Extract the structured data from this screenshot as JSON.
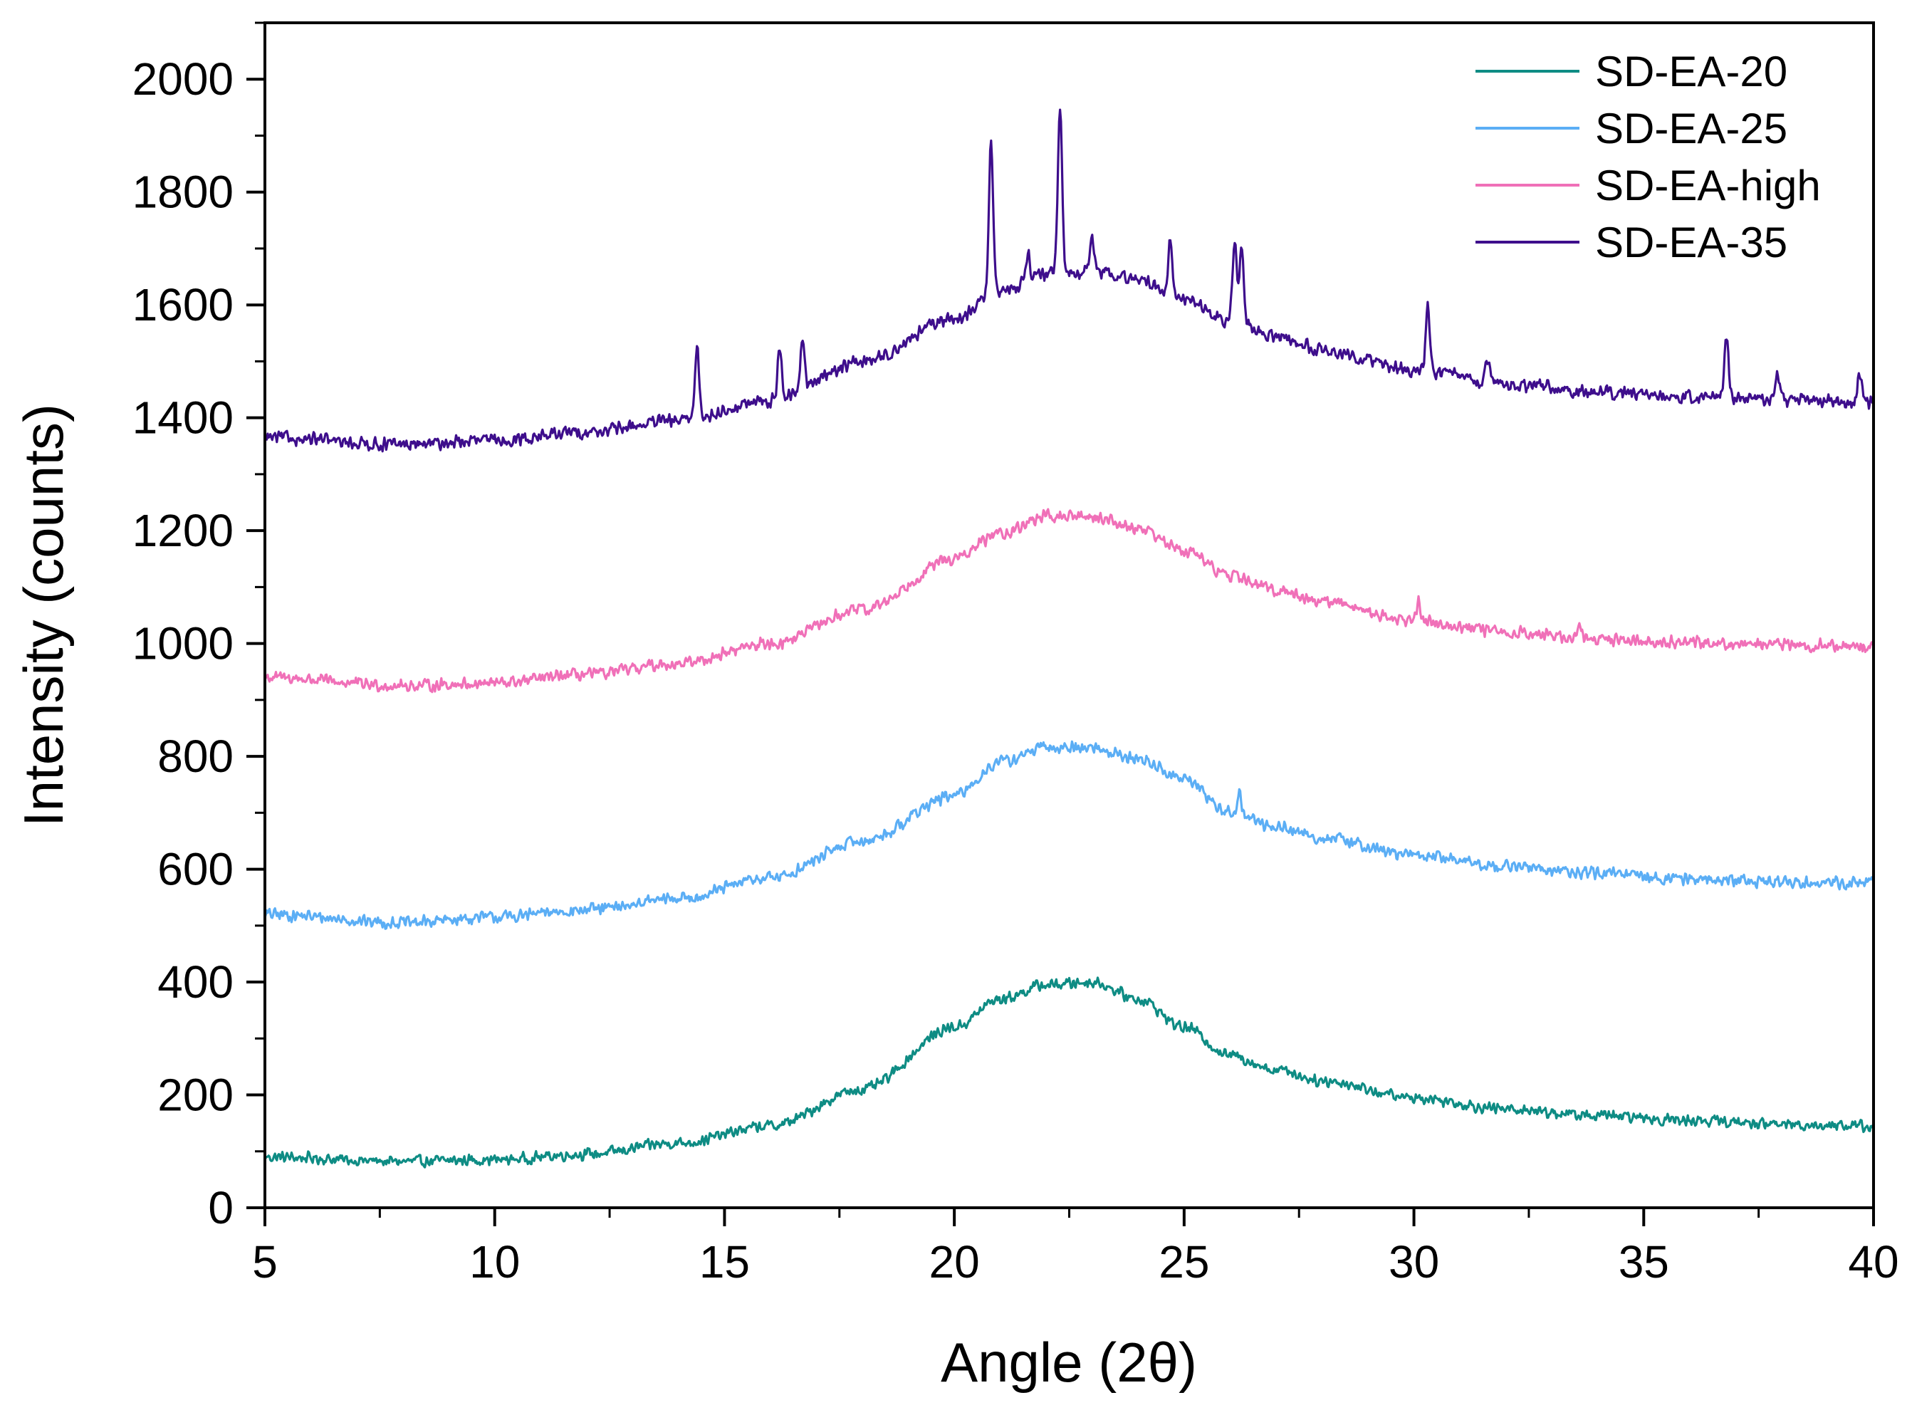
{
  "chart_data": {
    "type": "line",
    "title": "",
    "xlabel": "Angle (2θ)",
    "ylabel": "Intensity (counts)",
    "xlim": [
      5,
      40
    ],
    "ylim": [
      0,
      2100
    ],
    "xticks": [
      5,
      10,
      15,
      20,
      25,
      30,
      35,
      40
    ],
    "yticks": [
      0,
      200,
      400,
      600,
      800,
      1000,
      1200,
      1400,
      1600,
      1800,
      2000
    ],
    "xtick_labels": [
      "5",
      "10",
      "15",
      "20",
      "25",
      "30",
      "35",
      "40"
    ],
    "ytick_labels": [
      "0",
      "200",
      "400",
      "600",
      "800",
      "1000",
      "1200",
      "1400",
      "1600",
      "1800",
      "2000"
    ],
    "grid": false,
    "legend_position": "top-right",
    "series": [
      {
        "name": "SD-EA-20",
        "color": "#0E8C84",
        "baseline": [
          [
            5,
            90
          ],
          [
            8,
            82
          ],
          [
            10,
            85
          ],
          [
            12,
            95
          ],
          [
            14,
            115
          ],
          [
            16,
            145
          ],
          [
            18,
            210
          ],
          [
            20,
            320
          ],
          [
            21,
            370
          ],
          [
            22,
            395
          ],
          [
            23,
            400
          ],
          [
            24,
            370
          ],
          [
            25,
            320
          ],
          [
            26,
            270
          ],
          [
            27,
            245
          ],
          [
            28,
            225
          ],
          [
            30,
            195
          ],
          [
            32,
            175
          ],
          [
            34,
            163
          ],
          [
            36,
            155
          ],
          [
            38,
            148
          ],
          [
            40,
            145
          ]
        ],
        "noise": 12,
        "peaks": []
      },
      {
        "name": "SD-EA-25",
        "color": "#5BAEF5",
        "baseline": [
          [
            5,
            520
          ],
          [
            8,
            505
          ],
          [
            10,
            515
          ],
          [
            12,
            528
          ],
          [
            14,
            548
          ],
          [
            16,
            585
          ],
          [
            18,
            650
          ],
          [
            20,
            730
          ],
          [
            21,
            790
          ],
          [
            22,
            815
          ],
          [
            23,
            815
          ],
          [
            24,
            795
          ],
          [
            25,
            760
          ],
          [
            26,
            700
          ],
          [
            27,
            675
          ],
          [
            28,
            655
          ],
          [
            30,
            625
          ],
          [
            32,
            605
          ],
          [
            34,
            592
          ],
          [
            36,
            583
          ],
          [
            38,
            578
          ],
          [
            40,
            575
          ]
        ],
        "noise": 13,
        "peaks": [
          [
            26.2,
            40
          ]
        ]
      },
      {
        "name": "SD-EA-high",
        "color": "#F070B8",
        "baseline": [
          [
            5,
            940
          ],
          [
            8,
            925
          ],
          [
            10,
            930
          ],
          [
            12,
            945
          ],
          [
            14,
            965
          ],
          [
            16,
            1000
          ],
          [
            18,
            1060
          ],
          [
            20,
            1150
          ],
          [
            21,
            1195
          ],
          [
            22,
            1225
          ],
          [
            23,
            1225
          ],
          [
            24,
            1205
          ],
          [
            25,
            1165
          ],
          [
            26,
            1120
          ],
          [
            27,
            1095
          ],
          [
            28,
            1075
          ],
          [
            30,
            1040
          ],
          [
            32,
            1020
          ],
          [
            34,
            1008
          ],
          [
            36,
            1002
          ],
          [
            38,
            998
          ],
          [
            40,
            995
          ]
        ],
        "noise": 13,
        "peaks": [
          [
            30.1,
            35
          ],
          [
            33.6,
            25
          ]
        ]
      },
      {
        "name": "SD-EA-35",
        "color": "#3E0E8C",
        "baseline": [
          [
            5,
            1365
          ],
          [
            8,
            1352
          ],
          [
            10,
            1360
          ],
          [
            12,
            1375
          ],
          [
            14,
            1395
          ],
          [
            16,
            1430
          ],
          [
            18,
            1500
          ],
          [
            20,
            1575
          ],
          [
            21,
            1625
          ],
          [
            22,
            1655
          ],
          [
            23,
            1660
          ],
          [
            24,
            1645
          ],
          [
            25,
            1610
          ],
          [
            26,
            1570
          ],
          [
            27,
            1545
          ],
          [
            28,
            1520
          ],
          [
            30,
            1485
          ],
          [
            32,
            1460
          ],
          [
            34,
            1445
          ],
          [
            36,
            1438
          ],
          [
            38,
            1432
          ],
          [
            40,
            1425
          ]
        ],
        "noise": 14,
        "peaks": [
          [
            14.4,
            130
          ],
          [
            16.2,
            95
          ],
          [
            16.7,
            95
          ],
          [
            20.8,
            270
          ],
          [
            21.6,
            50
          ],
          [
            22.3,
            295
          ],
          [
            23.0,
            55
          ],
          [
            24.7,
            95
          ],
          [
            26.1,
            150
          ],
          [
            26.25,
            140
          ],
          [
            30.3,
            110
          ],
          [
            31.6,
            40
          ],
          [
            36.8,
            110
          ],
          [
            37.9,
            50
          ],
          [
            39.7,
            55
          ]
        ]
      }
    ]
  }
}
